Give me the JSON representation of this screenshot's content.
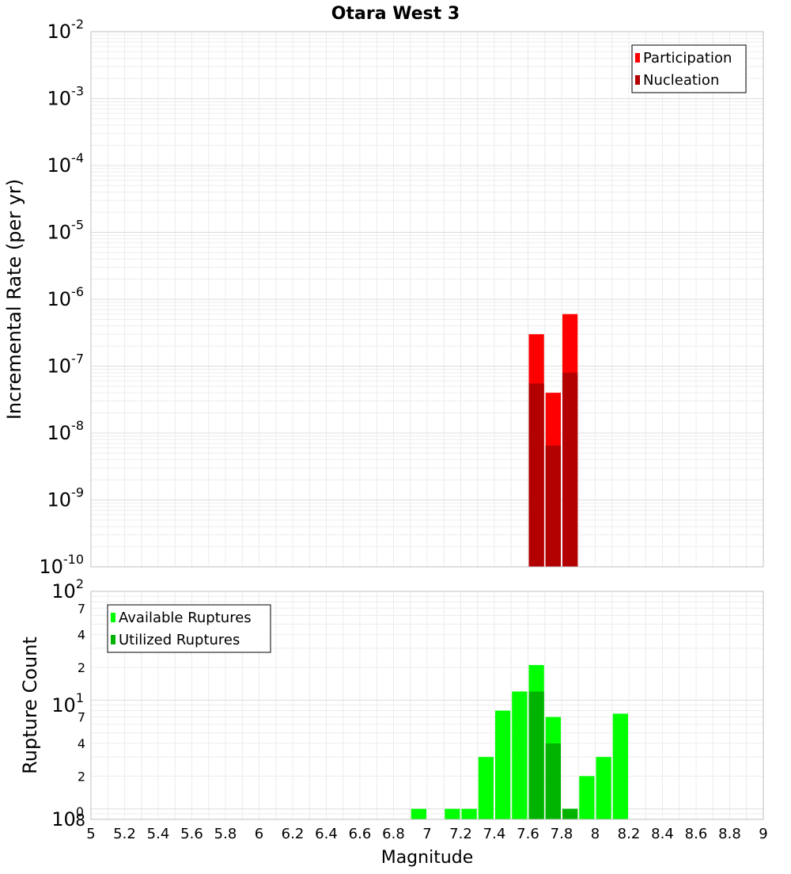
{
  "chart_data": {
    "title": "Otara West 3",
    "xlabel": "Magnitude",
    "xlim": [
      5,
      9
    ],
    "x_ticks": [
      "5",
      "5.2",
      "5.4",
      "5.6",
      "5.8",
      "6",
      "6.2",
      "6.4",
      "6.6",
      "6.8",
      "7",
      "7.2",
      "7.4",
      "7.6",
      "7.8",
      "8",
      "8.2",
      "8.4",
      "8.6",
      "8.8",
      "9"
    ],
    "bin_width": 0.1,
    "panels": [
      {
        "type": "bar",
        "scale": "log",
        "ylabel": "Incremental Rate (per yr)",
        "ylim": [
          1e-10,
          0.01
        ],
        "y_ticks": [
          {
            "base": "10",
            "exp": "-2"
          },
          {
            "base": "10",
            "exp": "-3"
          },
          {
            "base": "10",
            "exp": "-4"
          },
          {
            "base": "10",
            "exp": "-5"
          },
          {
            "base": "10",
            "exp": "-6"
          },
          {
            "base": "10",
            "exp": "-7"
          },
          {
            "base": "10",
            "exp": "-8"
          },
          {
            "base": "10",
            "exp": "-9"
          },
          {
            "base": "10",
            "exp": "-10"
          }
        ],
        "legend": {
          "position": "top-right"
        },
        "series": [
          {
            "name": "Participation",
            "color": "#ff0000",
            "x": [
              7.65,
              7.75,
              7.85
            ],
            "values": [
              3e-07,
              4e-08,
              6e-07
            ]
          },
          {
            "name": "Nucleation",
            "color": "#b30000",
            "x": [
              7.65,
              7.75,
              7.85
            ],
            "values": [
              5.5e-08,
              6.5e-09,
              8e-08
            ]
          }
        ]
      },
      {
        "type": "bar",
        "scale": "log",
        "ylabel": "Rupture Count",
        "ylim": [
          0.8,
          100
        ],
        "y_ticks": [
          {
            "base": "10",
            "exp": "2"
          },
          {
            "base": "10",
            "exp": "1"
          },
          {
            "base": "10",
            "exp": "0"
          }
        ],
        "y_minor_labels": [
          "7",
          "4",
          "2",
          "7",
          "4",
          "2",
          "8"
        ],
        "legend": {
          "position": "top-left"
        },
        "series": [
          {
            "name": "Available Ruptures",
            "color": "#00ff00",
            "x": [
              6.95,
              7.15,
              7.25,
              7.35,
              7.45,
              7.55,
              7.65,
              7.75,
              7.85,
              7.95,
              8.05,
              8.15
            ],
            "values": [
              1,
              1,
              1,
              3,
              8,
              12,
              21,
              7,
              1,
              2,
              3,
              7.5
            ]
          },
          {
            "name": "Utilized Ruptures",
            "color": "#00b300",
            "x": [
              7.65,
              7.75,
              7.85
            ],
            "values": [
              12,
              4,
              1
            ]
          }
        ]
      }
    ]
  }
}
